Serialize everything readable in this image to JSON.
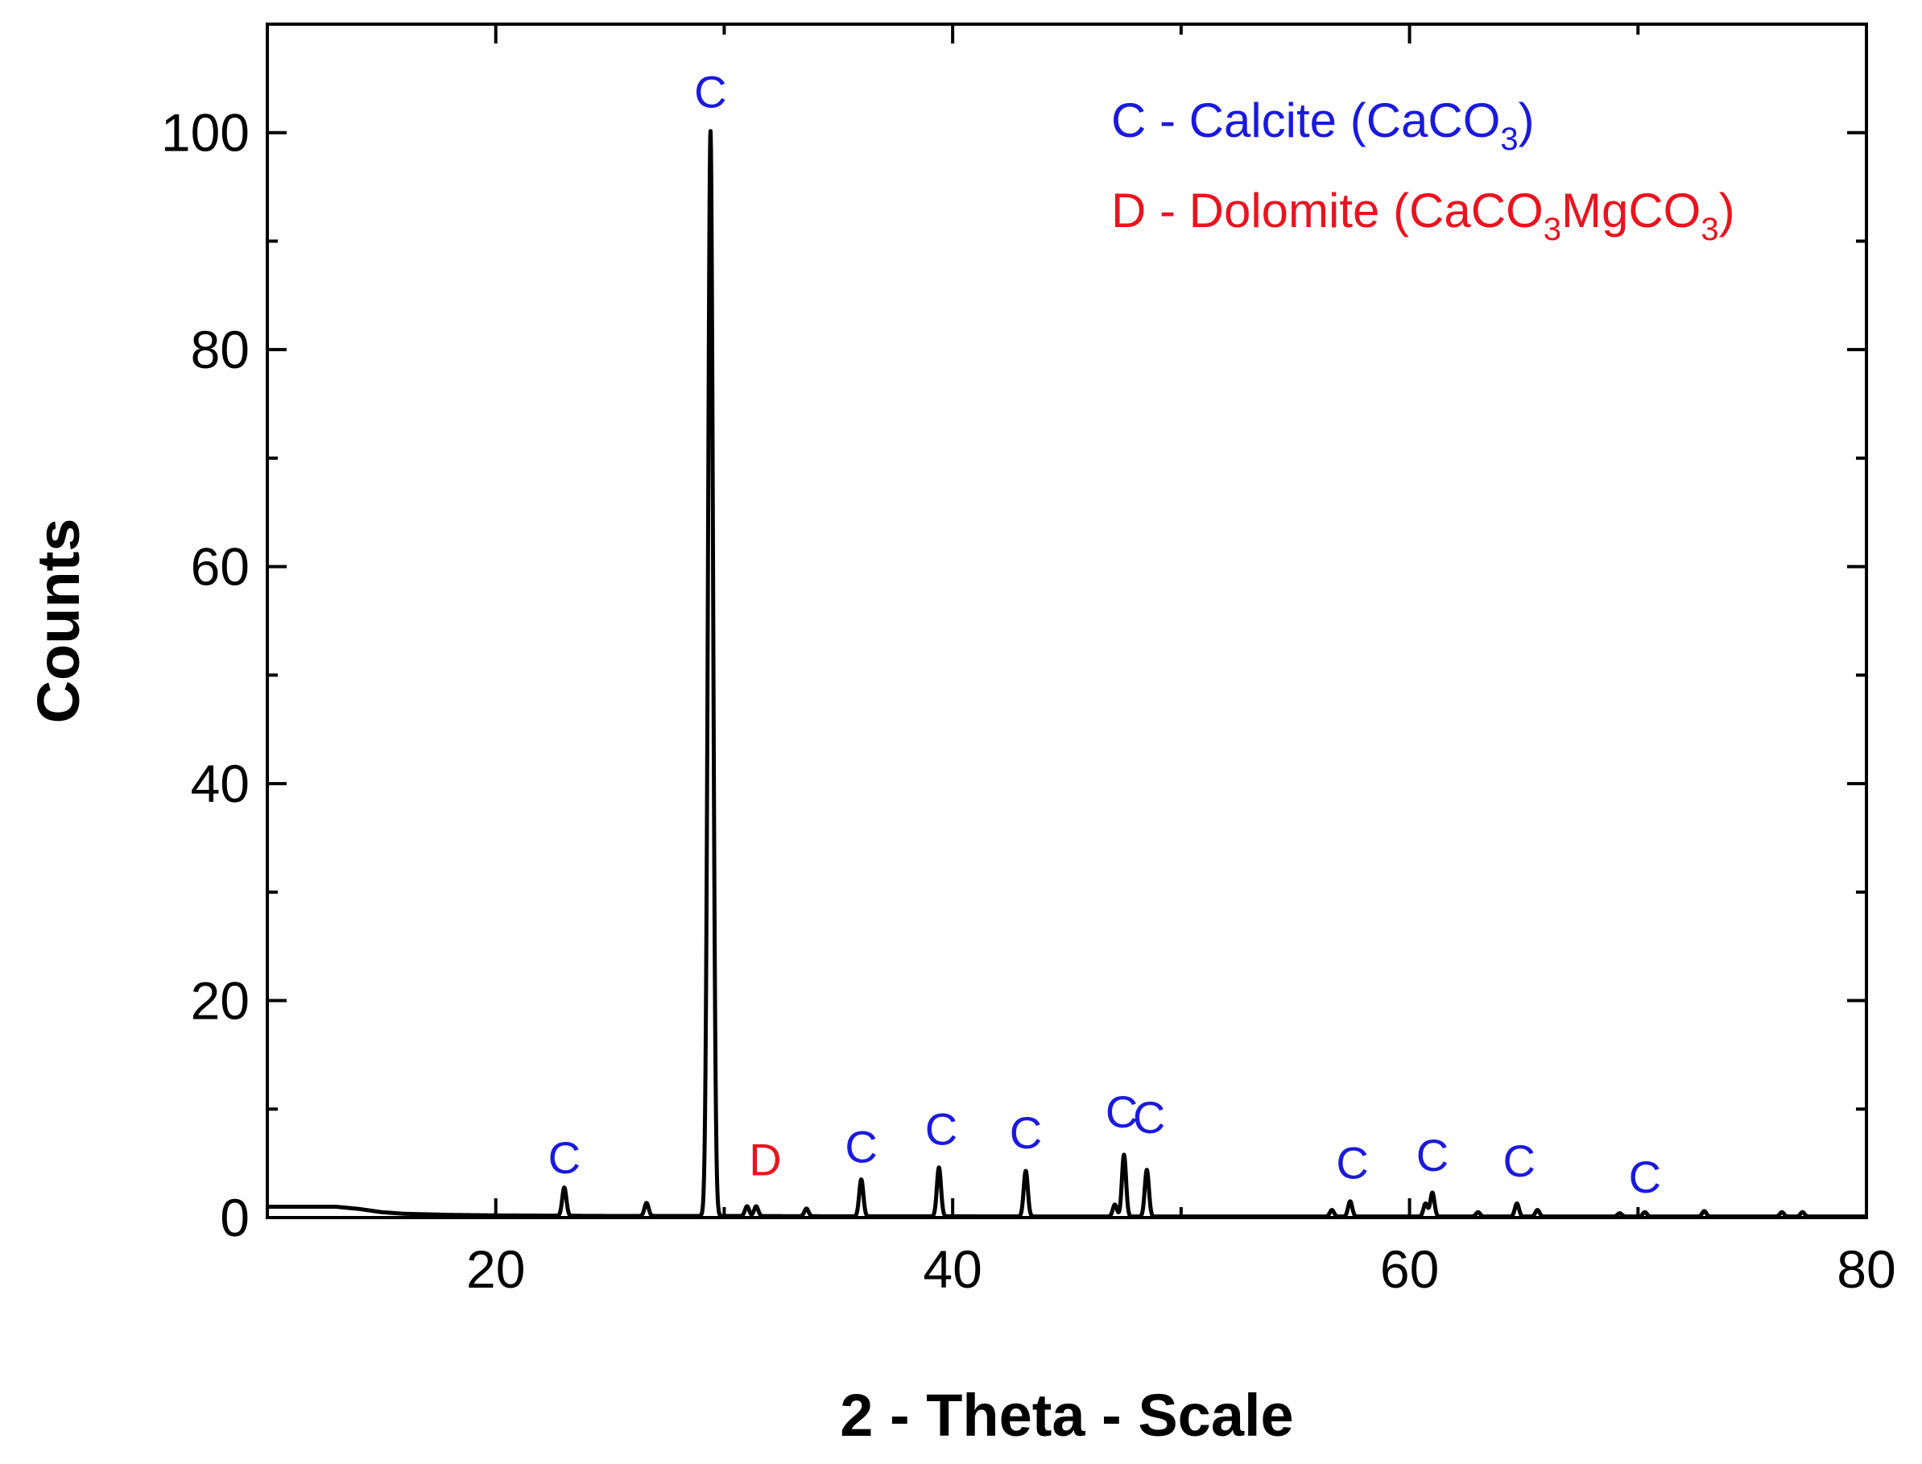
{
  "chart_data": {
    "type": "line",
    "title": "",
    "xlabel": "2 - Theta - Scale",
    "ylabel": "Counts",
    "xlim": [
      10,
      80
    ],
    "ylim": [
      0,
      110
    ],
    "x_ticks": [
      "20",
      "40",
      "60",
      "80"
    ],
    "y_ticks": [
      "0",
      "20",
      "40",
      "60",
      "80",
      "100"
    ],
    "x_tick_values": [
      20,
      40,
      60,
      80
    ],
    "y_tick_values": [
      0,
      20,
      40,
      60,
      80,
      100
    ],
    "grid": false,
    "colors": {
      "line": "#000000",
      "calcite": "#1a1adc",
      "dolomite": "#e8141e"
    },
    "background": {
      "x": [
        10,
        11,
        13,
        14,
        15,
        16,
        18,
        20,
        25,
        30,
        35,
        40,
        45,
        50,
        55,
        60,
        65,
        70,
        75,
        80
      ],
      "y": [
        1.0,
        1.0,
        1.0,
        0.8,
        0.5,
        0.35,
        0.25,
        0.2,
        0.15,
        0.15,
        0.12,
        0.12,
        0.1,
        0.1,
        0.1,
        0.1,
        0.1,
        0.1,
        0.1,
        0.1
      ]
    },
    "peaks": [
      {
        "x": 23.0,
        "y": 2.6
      },
      {
        "x": 26.6,
        "y": 1.2
      },
      {
        "x": 29.4,
        "y": 100
      },
      {
        "x": 31.0,
        "y": 0.9
      },
      {
        "x": 31.4,
        "y": 0.9
      },
      {
        "x": 33.6,
        "y": 0.7
      },
      {
        "x": 36.0,
        "y": 3.4
      },
      {
        "x": 39.4,
        "y": 4.5
      },
      {
        "x": 43.2,
        "y": 4.2
      },
      {
        "x": 47.1,
        "y": 1.1
      },
      {
        "x": 47.5,
        "y": 5.7
      },
      {
        "x": 48.5,
        "y": 4.3
      },
      {
        "x": 56.6,
        "y": 0.6
      },
      {
        "x": 57.4,
        "y": 1.4
      },
      {
        "x": 60.7,
        "y": 1.2
      },
      {
        "x": 61.0,
        "y": 2.2
      },
      {
        "x": 63.0,
        "y": 0.4
      },
      {
        "x": 64.7,
        "y": 1.2
      },
      {
        "x": 65.6,
        "y": 0.6
      },
      {
        "x": 69.2,
        "y": 0.3
      },
      {
        "x": 70.3,
        "y": 0.4
      },
      {
        "x": 72.9,
        "y": 0.5
      },
      {
        "x": 76.3,
        "y": 0.4
      },
      {
        "x": 77.2,
        "y": 0.4
      }
    ],
    "annotations": [
      {
        "text": "C",
        "x": 23.0,
        "y": 4.1,
        "phase": "calcite"
      },
      {
        "text": "C",
        "x": 29.4,
        "y": 102.3,
        "phase": "calcite"
      },
      {
        "text": "D",
        "x": 31.8,
        "y": 3.9,
        "phase": "dolomite"
      },
      {
        "text": "C",
        "x": 36.0,
        "y": 5.1,
        "phase": "calcite"
      },
      {
        "text": "C",
        "x": 39.5,
        "y": 6.7,
        "phase": "calcite"
      },
      {
        "text": "C",
        "x": 43.2,
        "y": 6.4,
        "phase": "calcite"
      },
      {
        "text": "C",
        "x": 47.4,
        "y": 8.3,
        "phase": "calcite"
      },
      {
        "text": "C",
        "x": 48.6,
        "y": 7.8,
        "phase": "calcite"
      },
      {
        "text": "C",
        "x": 57.5,
        "y": 3.6,
        "phase": "calcite"
      },
      {
        "text": "C",
        "x": 61.0,
        "y": 4.3,
        "phase": "calcite"
      },
      {
        "text": "C",
        "x": 64.8,
        "y": 3.8,
        "phase": "calcite"
      },
      {
        "text": "C",
        "x": 70.3,
        "y": 2.3,
        "phase": "calcite"
      }
    ],
    "legend": {
      "placement": "top-right",
      "entries": [
        {
          "text": "C - Calcite (CaCO",
          "sub": "3",
          "tail": ")",
          "phase": "calcite"
        },
        {
          "text": "D - Dolomite (CaCO",
          "sub": "3",
          "mid": "MgCO",
          "sub2": "3",
          "tail": ")",
          "phase": "dolomite"
        }
      ]
    }
  }
}
